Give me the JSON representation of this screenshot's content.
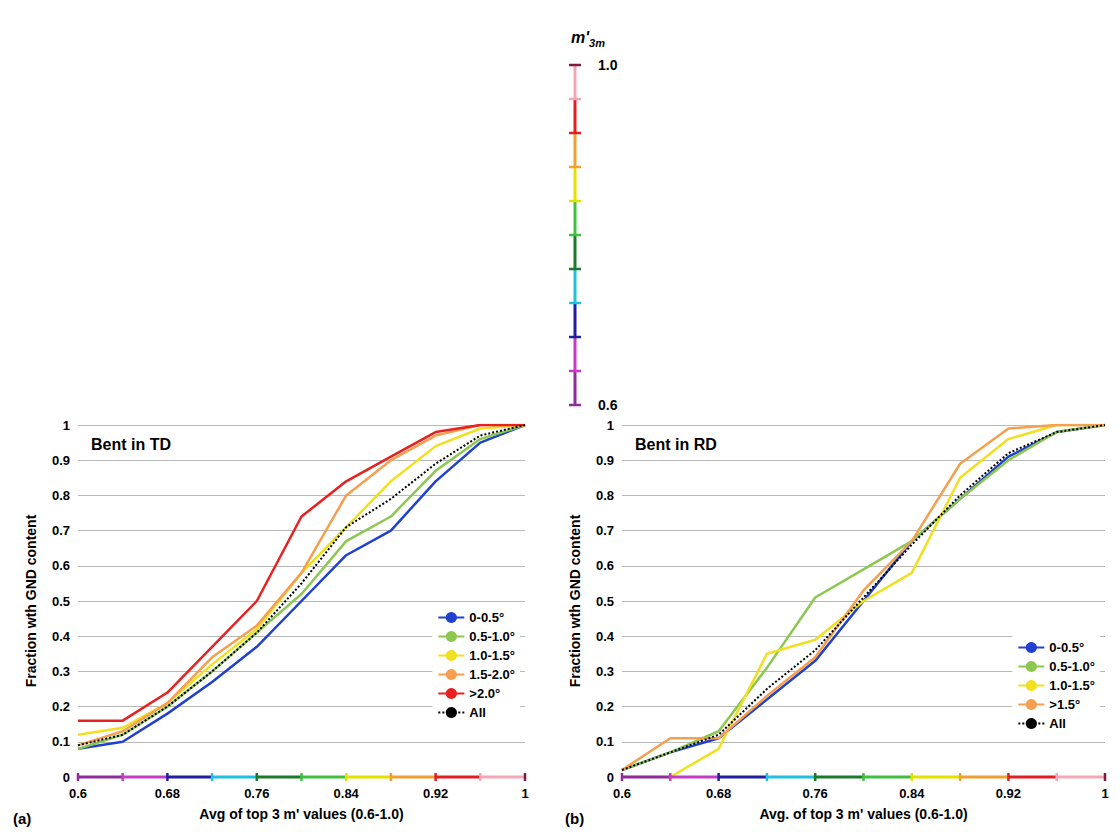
{
  "chart_data": [
    {
      "type": "colorbar",
      "title": "m'3m",
      "ylim": [
        0.6,
        1.0
      ],
      "yticks": [
        {
          "value": 0.6,
          "label": "0.6"
        },
        {
          "value": 1.0,
          "label": "1.0"
        }
      ],
      "levels": [
        0.6,
        0.64,
        0.68,
        0.72,
        0.76,
        0.8,
        0.84,
        0.88,
        0.92,
        0.96,
        1.0
      ],
      "colors": [
        "#8e2c9a",
        "#c43cc4",
        "#1f1f9f",
        "#22c0e0",
        "#1a7a2a",
        "#40c040",
        "#e6e000",
        "#f0a030",
        "#e02020",
        "#f4a6b8",
        "#7a1f3f"
      ]
    },
    {
      "type": "line",
      "panel": "(a)",
      "title": "Bent in TD",
      "x_label": "Avg of top 3 m' values (0.6-1.0)",
      "y_label": "Fraction wth GND content",
      "x": [
        0.6,
        0.64,
        0.68,
        0.72,
        0.76,
        0.8,
        0.84,
        0.88,
        0.92,
        0.96,
        1.0
      ],
      "xlim": [
        0.6,
        1.0
      ],
      "xticks": [
        0.6,
        0.68,
        0.76,
        0.84,
        0.92,
        1
      ],
      "ylim": [
        0,
        1
      ],
      "yticks": [
        0,
        0.1,
        0.2,
        0.3,
        0.4,
        0.5,
        0.6,
        0.7,
        0.8,
        0.9,
        1
      ],
      "grid": true,
      "legend": "right",
      "series": [
        {
          "name": "0-0.5°",
          "color": "#2040d0",
          "values": [
            0.08,
            0.1,
            0.18,
            0.27,
            0.37,
            0.5,
            0.63,
            0.7,
            0.84,
            0.95,
            1.0
          ]
        },
        {
          "name": "0.5-1.0°",
          "color": "#8cc850",
          "values": [
            0.08,
            0.12,
            0.2,
            0.3,
            0.41,
            0.52,
            0.67,
            0.74,
            0.87,
            0.96,
            1.0
          ]
        },
        {
          "name": "1.0-1.5°",
          "color": "#f0e020",
          "values": [
            0.12,
            0.14,
            0.21,
            0.32,
            0.42,
            0.58,
            0.71,
            0.84,
            0.94,
            0.99,
            1.0
          ]
        },
        {
          "name": "1.5-2.0°",
          "color": "#f5a050",
          "values": [
            0.09,
            0.13,
            0.21,
            0.34,
            0.43,
            0.58,
            0.8,
            0.9,
            0.97,
            1.0,
            1.0
          ]
        },
        {
          "name": ">2.0°",
          "color": "#e82020",
          "values": [
            0.16,
            0.16,
            0.24,
            0.37,
            0.5,
            0.74,
            0.84,
            0.91,
            0.98,
            1.0,
            1.0
          ]
        },
        {
          "name": "All",
          "color": "#000000",
          "line_style": "dotted",
          "values": [
            0.09,
            0.12,
            0.2,
            0.3,
            0.41,
            0.55,
            0.71,
            0.79,
            0.89,
            0.97,
            1.0
          ]
        }
      ]
    },
    {
      "type": "line",
      "panel": "(b)",
      "title": "Bent in RD",
      "x_label": "Avg. of top 3 m' values (0.6-1.0)",
      "y_label": "Fraction wth GND content",
      "x": [
        0.6,
        0.64,
        0.68,
        0.72,
        0.76,
        0.8,
        0.84,
        0.88,
        0.92,
        0.96,
        1.0
      ],
      "xlim": [
        0.6,
        1.0
      ],
      "xticks": [
        0.6,
        0.68,
        0.76,
        0.84,
        0.92,
        1
      ],
      "ylim": [
        0,
        1
      ],
      "yticks": [
        0,
        0.1,
        0.2,
        0.3,
        0.4,
        0.5,
        0.6,
        0.7,
        0.8,
        0.9,
        1
      ],
      "grid": true,
      "legend": "right",
      "series": [
        {
          "name": "0-0.5°",
          "color": "#2040d0",
          "values": [
            0.02,
            0.07,
            0.11,
            0.22,
            0.33,
            0.5,
            0.67,
            0.79,
            0.91,
            0.98,
            1.0
          ]
        },
        {
          "name": "0.5-1.0°",
          "color": "#8cc850",
          "values": [
            0.02,
            0.07,
            0.13,
            0.31,
            0.51,
            0.59,
            0.67,
            0.79,
            0.9,
            0.98,
            1.0
          ]
        },
        {
          "name": "1.0-1.5°",
          "color": "#f0e020",
          "values": [
            0.0,
            0.0,
            0.08,
            0.35,
            0.39,
            0.5,
            0.58,
            0.85,
            0.96,
            1.0,
            1.0
          ]
        },
        {
          "name": ">1.5°",
          "color": "#f5a050",
          "values": [
            0.02,
            0.11,
            0.11,
            0.23,
            0.34,
            0.53,
            0.67,
            0.89,
            0.99,
            1.0,
            1.0
          ]
        },
        {
          "name": "All",
          "color": "#000000",
          "line_style": "dotted",
          "values": [
            0.02,
            0.07,
            0.12,
            0.25,
            0.36,
            0.51,
            0.66,
            0.8,
            0.92,
            0.98,
            1.0
          ]
        }
      ]
    }
  ]
}
